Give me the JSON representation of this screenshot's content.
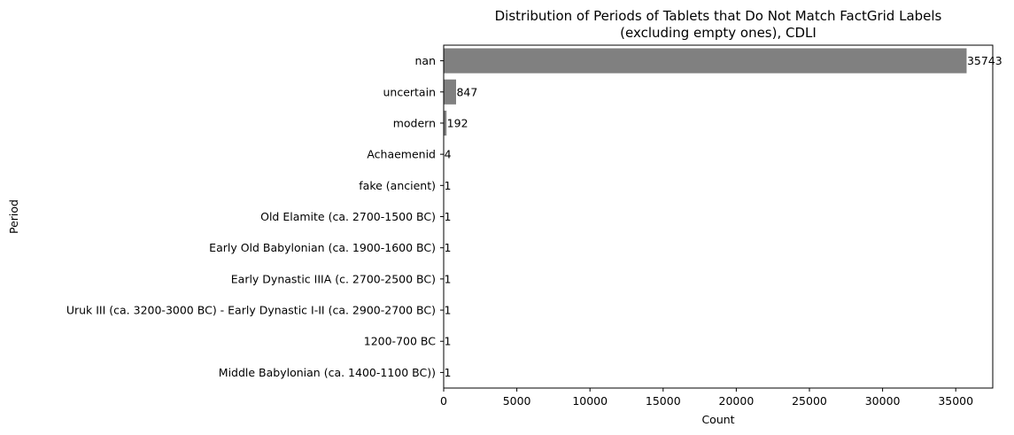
{
  "chart_data": {
    "type": "bar",
    "orientation": "horizontal",
    "title_lines": [
      "Distribution of Periods of Tablets that Do Not Match FactGrid Labels",
      "(excluding empty ones), CDLI"
    ],
    "xlabel": "Count",
    "ylabel": "Period",
    "xlim": [
      0,
      37530
    ],
    "xticks": [
      0,
      5000,
      10000,
      15000,
      20000,
      25000,
      30000,
      35000
    ],
    "grid": false,
    "bar_color": "#808080",
    "categories": [
      "nan",
      "uncertain",
      "modern",
      "Achaemenid",
      "fake (ancient)",
      "Old Elamite (ca. 2700-1500 BC)",
      "Early Old Babylonian (ca. 1900-1600 BC)",
      "Early Dynastic IIIA (c. 2700-2500 BC)",
      "Uruk III (ca. 3200-3000 BC) - Early Dynastic I-II (ca. 2900-2700 BC)",
      "1200-700 BC",
      "Middle Babylonian (ca. 1400-1100 BC))"
    ],
    "values": [
      35743,
      847,
      192,
      4,
      1,
      1,
      1,
      1,
      1,
      1,
      1
    ]
  }
}
